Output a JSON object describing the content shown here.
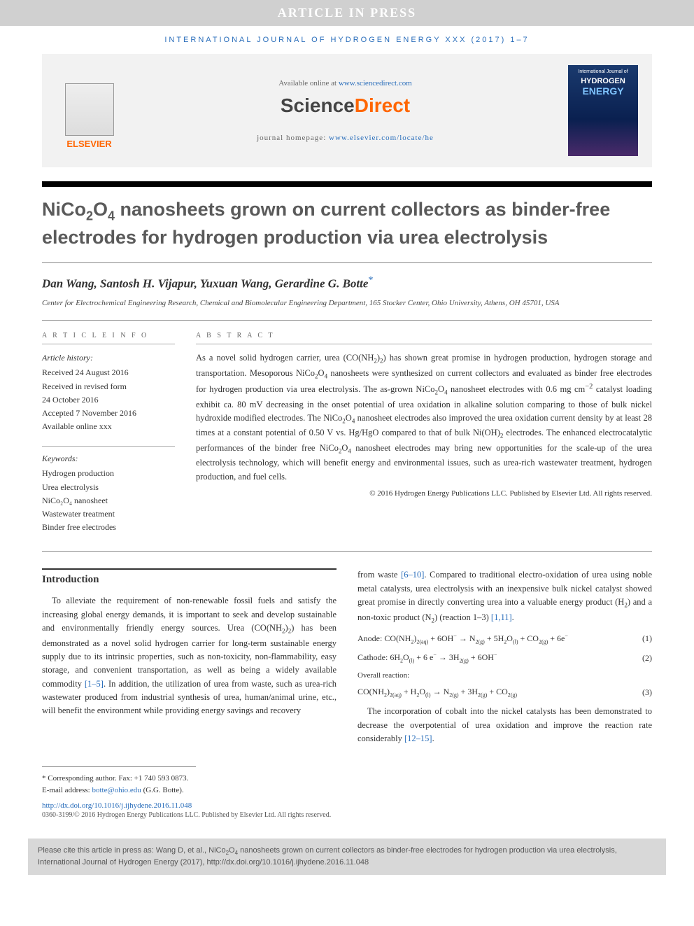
{
  "banner": "ARTICLE IN PRESS",
  "journal_ref": "INTERNATIONAL JOURNAL OF HYDROGEN ENERGY XXX (2017) 1–7",
  "header": {
    "available_text": "Available online at ",
    "available_url": "www.sciencedirect.com",
    "brand_prefix": "Science",
    "brand_suffix": "Direct",
    "homepage_text": "journal homepage: ",
    "homepage_url": "www.elsevier.com/locate/he",
    "elsevier": "ELSEVIER",
    "cover_line1": "International Journal of",
    "cover_line2": "HYDROGEN",
    "cover_line3": "ENERGY"
  },
  "title_html": "NiCo<sub>2</sub>O<sub>4</sub> nanosheets grown on current collectors as binder-free electrodes for hydrogen production via urea electrolysis",
  "authors": "Dan Wang, Santosh H. Vijapur, Yuxuan Wang, Gerardine G. Botte",
  "corresponding_mark": "*",
  "affiliation": "Center for Electrochemical Engineering Research, Chemical and Biomolecular Engineering Department, 165 Stocker Center, Ohio University, Athens, OH 45701, USA",
  "info_label": "A R T I C L E   I N F O",
  "abstract_label": "A B S T R A C T",
  "history": {
    "title": "Article history:",
    "received": "Received 24 August 2016",
    "revised1": "Received in revised form",
    "revised2": "24 October 2016",
    "accepted": "Accepted 7 November 2016",
    "online": "Available online xxx"
  },
  "keywords": {
    "title": "Keywords:",
    "items": [
      "Hydrogen production",
      "Urea electrolysis",
      "NiCo₂O₄ nanosheet",
      "Wastewater treatment",
      "Binder free electrodes"
    ]
  },
  "abstract_html": "As a novel solid hydrogen carrier, urea (CO(NH<sub>2</sub>)<sub>2</sub>) has shown great promise in hydrogen production, hydrogen storage and transportation. Mesoporous NiCo<sub>2</sub>O<sub>4</sub> nanosheets were synthesized on current collectors and evaluated as binder free electrodes for hydrogen production via urea electrolysis. The as-grown NiCo<sub>2</sub>O<sub>4</sub> nanosheet electrodes with 0.6 mg cm<sup>−2</sup> catalyst loading exhibit ca. 80 mV decreasing in the onset potential of urea oxidation in alkaline solution comparing to those of bulk nickel hydroxide modified electrodes. The NiCo<sub>2</sub>O<sub>4</sub> nanosheet electrodes also improved the urea oxidation current density by at least 28 times at a constant potential of 0.50 V vs. Hg/HgO compared to that of bulk Ni(OH)<sub>2</sub> electrodes. The enhanced electrocatalytic performances of the binder free NiCo<sub>2</sub>O<sub>4</sub> nanosheet electrodes may bring new opportunities for the scale-up of the urea electrolysis technology, which will benefit energy and environmental issues, such as urea-rich wastewater treatment, hydrogen production, and fuel cells.",
  "abstract_copyright": "© 2016 Hydrogen Energy Publications LLC. Published by Elsevier Ltd. All rights reserved.",
  "intro_heading": "Introduction",
  "intro_p1_html": "To alleviate the requirement of non-renewable fossil fuels and satisfy the increasing global energy demands, it is important to seek and develop sustainable and environmentally friendly energy sources. Urea (CO(NH<sub>2</sub>)<sub>2</sub>) has been demonstrated as a novel solid hydrogen carrier for long-term sustainable energy supply due to its intrinsic properties, such as non-toxicity, non-flammability, easy storage, and convenient transportation, as well as being a widely available commodity <a href='#'>[1–5]</a>. In addition, the utilization of urea from waste, such as urea-rich wastewater produced from industrial synthesis of urea, human/animal urine, etc., will benefit the environment while providing energy savings and recovery",
  "intro_p2_html": "from waste <a href='#'>[6–10]</a>. Compared to traditional electro-oxidation of urea using noble metal catalysts, urea electrolysis with an inexpensive bulk nickel catalyst showed great promise in directly converting urea into a valuable energy product (H<sub>2</sub>) and a non-toxic product (N<sub>2</sub>) (reaction 1–3) <a href='#'>[1,11]</a>.",
  "equations": [
    {
      "label": "Anode:",
      "eq_html": "CO(NH<sub>2</sub>)<sub>2(aq)</sub> + 6OH<sup>−</sup> → N<sub>2(g)</sub> + 5H<sub>2</sub>O<sub>(l)</sub> + CO<sub>2(g)</sub> + 6e<sup>−</sup>",
      "num": "(1)"
    },
    {
      "label": "Cathode:",
      "eq_html": "6H<sub>2</sub>O<sub>(l)</sub> + 6 e<sup>−</sup> → 3H<sub>2(g)</sub> + 6OH<sup>−</sup>",
      "num": "(2)"
    },
    {
      "label": "Overall reaction:",
      "eq_html": "CO(NH<sub>2</sub>)<sub>2(aq)</sub> + H<sub>2</sub>O<sub>(l)</sub> → N<sub>2(g)</sub> + 3H<sub>2(g)</sub> + CO<sub>2(g)</sub>",
      "num": "(3)"
    }
  ],
  "intro_p3_html": "The incorporation of cobalt into the nickel catalysts has been demonstrated to decrease the overpotential of urea oxidation and improve the reaction rate considerably <a href='#'>[12–15]</a>.",
  "footnotes": {
    "corr": "* Corresponding author. Fax: +1 740 593 0873.",
    "email_label": "E-mail address: ",
    "email": "botte@ohio.edu",
    "email_who": " (G.G. Botte)."
  },
  "doi": "http://dx.doi.org/10.1016/j.ijhydene.2016.11.048",
  "bottom_copy": "0360-3199/© 2016 Hydrogen Energy Publications LLC. Published by Elsevier Ltd. All rights reserved.",
  "cite_box_html": "Please cite this article in press as: Wang D, et al., NiCo<sub>2</sub>O<sub>4</sub> nanosheets grown on current collectors as binder-free electrodes for hydrogen production via urea electrolysis, International Journal of Hydrogen Energy (2017), http://dx.doi.org/10.1016/j.ijhydene.2016.11.048"
}
